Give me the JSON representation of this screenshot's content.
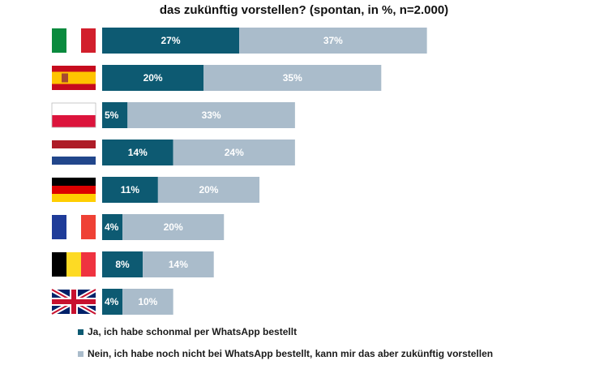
{
  "title_visible_line": "das zukünftig  vorstellen? (spontan, in %, n=2.000)",
  "colors": {
    "series1": "#0d5a72",
    "series2": "#aabccb"
  },
  "flag_icons": [
    "italy-flag-icon",
    "spain-flag-icon",
    "poland-flag-icon",
    "netherlands-flag-icon",
    "germany-flag-icon",
    "france-flag-icon",
    "belgium-flag-icon",
    "uk-flag-icon"
  ],
  "chart_data": {
    "type": "bar",
    "orientation": "horizontal",
    "stacked": true,
    "categories": [
      "Italy",
      "Spain",
      "Poland",
      "Netherlands",
      "Germany",
      "France",
      "Belgium",
      "United Kingdom"
    ],
    "series": [
      {
        "name": "Ja, ich habe schonmal per WhatsApp bestellt",
        "values": [
          27,
          20,
          5,
          14,
          11,
          4,
          8,
          4
        ],
        "labels": [
          "27%",
          "20%",
          "5%",
          "14%",
          "11%",
          "4%",
          "8%",
          "4%"
        ]
      },
      {
        "name": "Nein, ich habe noch nicht bei WhatsApp bestellt, kann mir das aber zukünftig vorstellen",
        "values": [
          37,
          35,
          33,
          24,
          20,
          20,
          14,
          10
        ],
        "labels": [
          "37%",
          "35%",
          "33%",
          "24%",
          "20%",
          "20%",
          "14%",
          "10%"
        ]
      }
    ],
    "legend_position": "bottom-left",
    "grid": false
  }
}
